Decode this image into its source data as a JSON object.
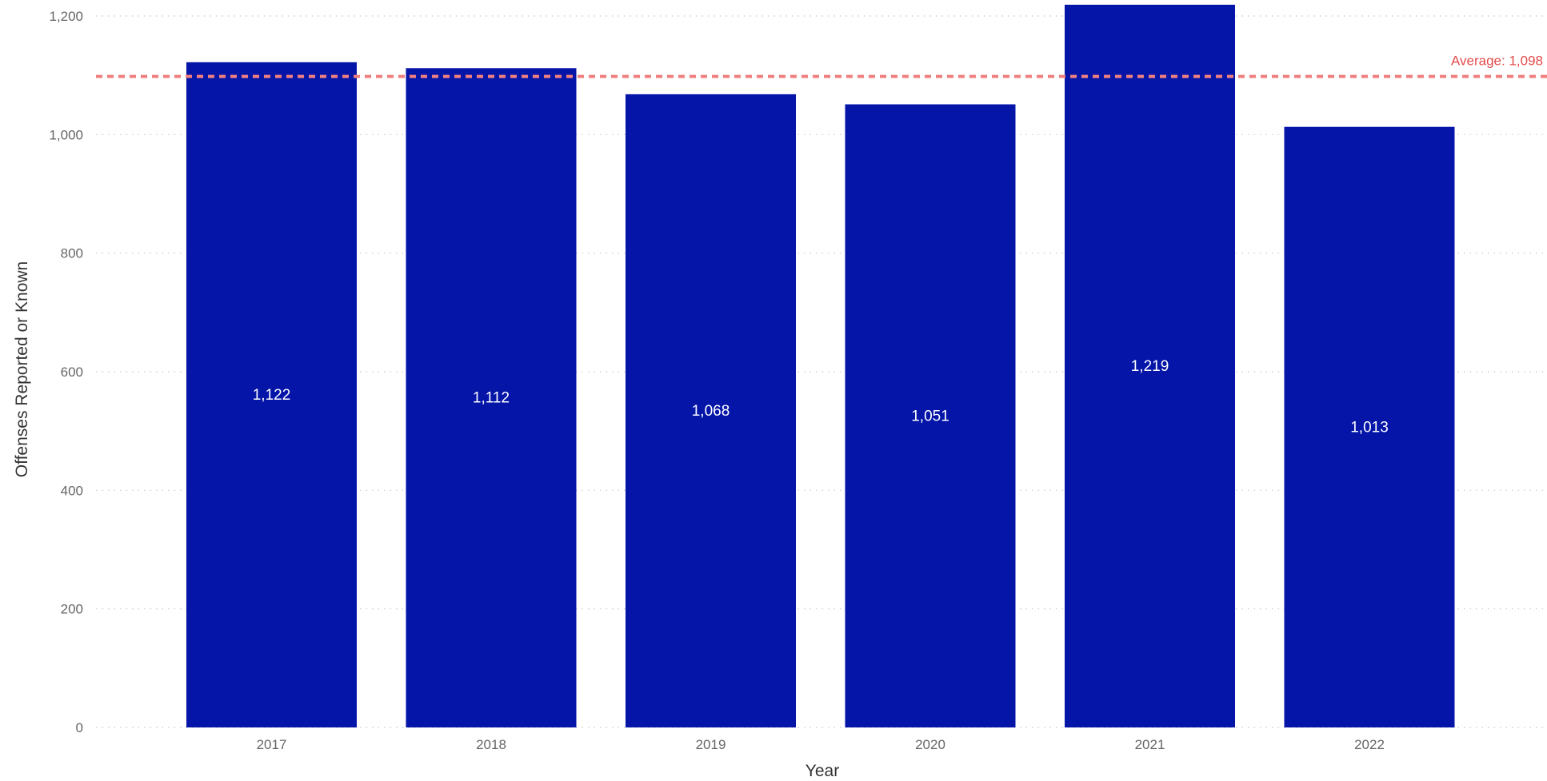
{
  "chart_data": {
    "type": "bar",
    "categories": [
      "2017",
      "2018",
      "2019",
      "2020",
      "2021",
      "2022"
    ],
    "values": [
      1122,
      1112,
      1068,
      1051,
      1219,
      1013
    ],
    "data_labels": [
      "1,122",
      "1,112",
      "1,068",
      "1,051",
      "1,219",
      "1,013"
    ],
    "xlabel": "Year",
    "ylabel": "Offenses Reported or Known",
    "ylim": [
      0,
      1200
    ],
    "yticks": [
      0,
      200,
      400,
      600,
      800,
      1000,
      1200
    ],
    "ytick_labels": [
      "0",
      "200",
      "400",
      "600",
      "800",
      "1,000",
      "1,200"
    ],
    "grid": true,
    "reference_line": {
      "type": "average",
      "value": 1098,
      "label": "Average: 1,098"
    },
    "colors": {
      "bar": "#0515A8",
      "average_line": "#F08080",
      "average_text": "#E34B4B"
    }
  }
}
